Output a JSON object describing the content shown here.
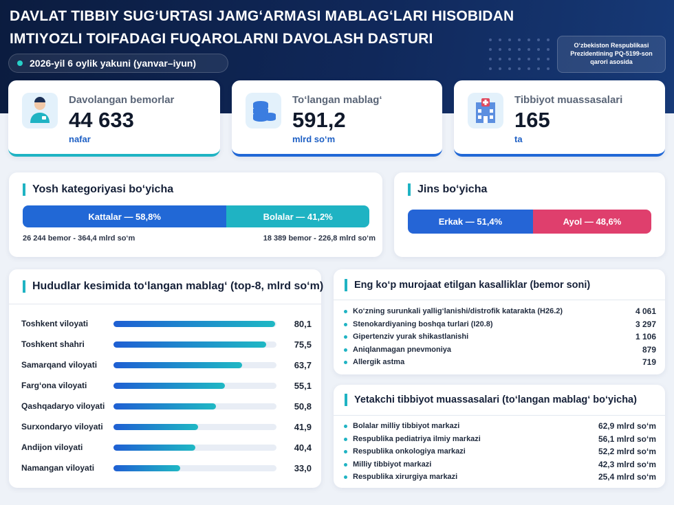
{
  "header": {
    "title_line1": "DAVLAT TIBBIY SUG‘URTASI JAMG‘ARMASI MABLAG‘LARI HISOBIDAN",
    "title_line2": "IMTIYOZLI TOIFADAGI FUQAROLARNI DAVOLASH DASTURI",
    "period": "2026-yil 6 oylik yakuni (yanvar–iyun)",
    "note_lines": [
      "O‘zbekiston Respublikasi",
      "Prezidentining PQ-5199-son",
      "qarori asosida"
    ]
  },
  "kpis": [
    {
      "label": "Davolangan bemorlar",
      "value": "44 633",
      "unit": "nafar"
    },
    {
      "label": "To‘langan mablag‘",
      "value": "591,2",
      "unit": "mlrd so‘m"
    },
    {
      "label": "Tibbiyot muassasalari",
      "value": "165",
      "unit": "ta"
    }
  ],
  "age": {
    "title": "Yosh kategoriyasi bo‘yicha",
    "segments": [
      {
        "label": "Kattalar — 58,8%",
        "value": 58.8,
        "color": "#2168d6",
        "detail": "26 244 bemor - 364,4 mlrd so‘m"
      },
      {
        "label": "Bolalar — 41,2%",
        "value": 41.2,
        "color": "#1fb3c3",
        "detail": "18 389 bemor - 226,8 mlrd so‘m"
      }
    ]
  },
  "gender": {
    "title": "Jins bo‘yicha",
    "segments": [
      {
        "label": "Erkak — 51,4%",
        "value": 51.4,
        "color": "#2565d6"
      },
      {
        "label": "Ayol — 48,6%",
        "value": 48.6,
        "color": "#df3f6d"
      }
    ]
  },
  "regions": {
    "title": "Hududlar kesimida to‘langan mablag‘ (top-8, mlrd so‘m)",
    "categories": [
      "Toshkent viloyati",
      "Toshkent shahri",
      "Samarqand viloyati",
      "Farg‘ona viloyati",
      "Qashqadaryo viloyati",
      "Surxondaryo viloyati",
      "Andijon viloyati",
      "Namangan viloyati"
    ],
    "values": [
      80.1,
      75.5,
      63.7,
      55.1,
      50.8,
      41.9,
      40.4,
      33.0
    ],
    "value_labels": [
      "80,1",
      "75,5",
      "63,7",
      "55,1",
      "50,8",
      "41,9",
      "40,4",
      "33,0"
    ]
  },
  "diseases": {
    "title": "Eng ko‘p murojaat etilgan kasalliklar (bemor soni)",
    "rows": [
      {
        "name": "Ko‘zning surunkali yallig‘lanishi/distrofik katarakta (H26.2)",
        "value": "4 061"
      },
      {
        "name": "Stenokardiyaning boshqa turlari (I20.8)",
        "value": "3 297"
      },
      {
        "name": "Gipertenziv yurak shikastlanishi",
        "value": "1 106"
      },
      {
        "name": "Aniqlanmagan pnevmoniya",
        "value": "879"
      },
      {
        "name": "Allergik astma",
        "value": "719"
      }
    ]
  },
  "institutions": {
    "title": "Yetakchi tibbiyot muassasalari (to‘langan mablag‘ bo‘yicha)",
    "rows": [
      {
        "name": "Bolalar milliy tibbiyot markazi",
        "value": "62,9 mlrd so‘m"
      },
      {
        "name": "Respublika pediatriya ilmiy markazi",
        "value": "56,1 mlrd so‘m"
      },
      {
        "name": "Respublika onkologiya markazi",
        "value": "52,2 mlrd so‘m"
      },
      {
        "name": "Milliy tibbiyot markazi",
        "value": "42,3 mlrd so‘m"
      },
      {
        "name": "Respublika xirurgiya markazi",
        "value": "25,4 mlrd so‘m"
      }
    ]
  }
}
